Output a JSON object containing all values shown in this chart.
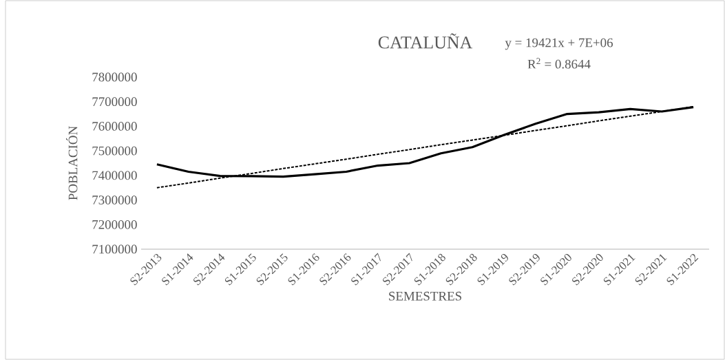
{
  "chart_data": {
    "type": "line",
    "title": "CATALUÑA",
    "xlabel": "SEMESTRES",
    "ylabel": "POBLACIÓN",
    "categories": [
      "S2-2013",
      "S1-2014",
      "S2-2014",
      "S1-2015",
      "S2-2015",
      "S1-2016",
      "S2-2016",
      "S1-2017",
      "S2-2017",
      "S1-2018",
      "S2-2018",
      "S1-2019",
      "S2-2019",
      "S1-2020",
      "S2-2020",
      "S1-2021",
      "S2-2021",
      "S1-2022"
    ],
    "series": [
      {
        "color": "#000000",
        "line_style": "solid",
        "values": [
          7445000,
          7415000,
          7398000,
          7397000,
          7395000,
          7405000,
          7415000,
          7440000,
          7450000,
          7490000,
          7515000,
          7565000,
          7610000,
          7650000,
          7657000,
          7670000,
          7660000,
          7678000
        ]
      },
      {
        "color": "#000000",
        "line_style": "dashed",
        "values": [
          7350000,
          7369000,
          7389000,
          7408000,
          7428000,
          7447000,
          7466000,
          7486000,
          7505000,
          7525000,
          7544000,
          7563000,
          7583000,
          7602000,
          7622000,
          7641000,
          7660000,
          7680000
        ]
      }
    ],
    "ylim": [
      7100000,
      7800000
    ],
    "yticks": [
      7100000,
      7200000,
      7300000,
      7400000,
      7500000,
      7600000,
      7700000,
      7800000
    ],
    "annotations": [
      "y = 19421x + 7E+06",
      "R$^{2}$ = 0.8644"
    ]
  }
}
